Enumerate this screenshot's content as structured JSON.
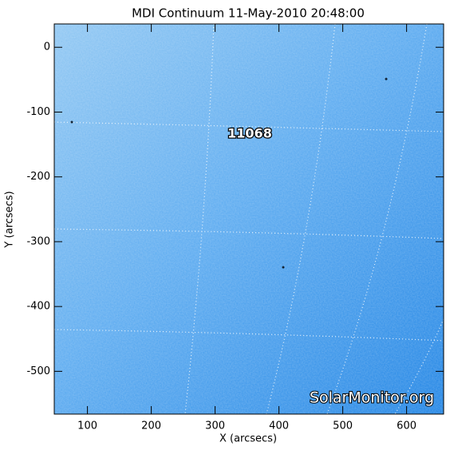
{
  "chart_data": {
    "type": "image",
    "title": "MDI Continuum 11-May-2010 20:48:00",
    "x_label": "X (arcsecs)",
    "y_label": "Y (arcsecs)",
    "xlim": [
      48,
      658
    ],
    "ylim": [
      -566,
      36
    ],
    "xticks": [
      100,
      200,
      300,
      400,
      500,
      600
    ],
    "yticks": [
      0,
      -100,
      -200,
      -300,
      -400,
      -500
    ],
    "annotations": [
      "11068"
    ],
    "watermark": "SolarMonitor.org"
  }
}
